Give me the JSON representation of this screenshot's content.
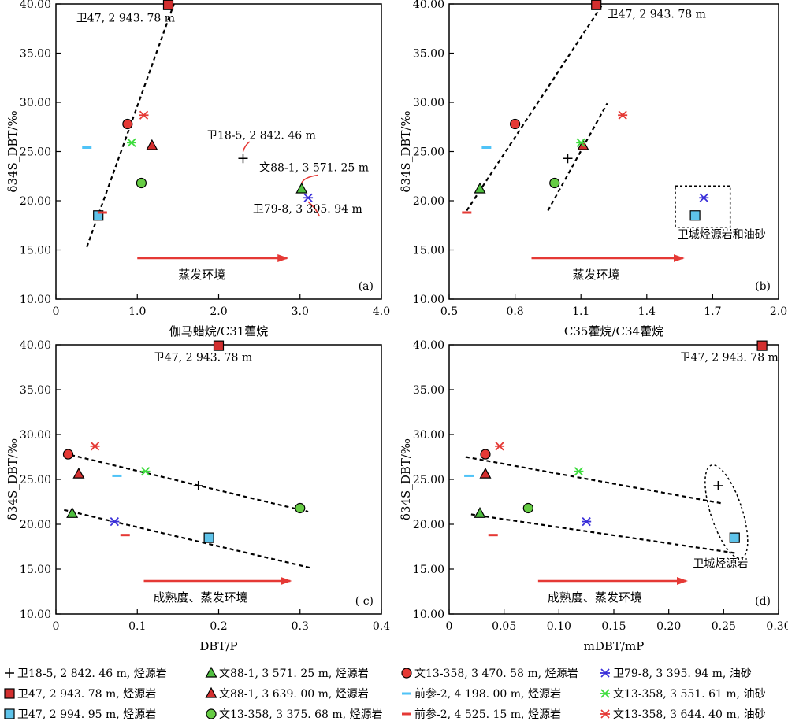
{
  "chart_data": [
    {
      "type": "scatter",
      "panel": "(a)",
      "xlabel": "伽马蜡烷/C31藿烷",
      "ylabel": "δ34S_DBT/‰",
      "xlim": [
        0,
        4.0
      ],
      "ylim": [
        10,
        40
      ],
      "xticks": [
        "0",
        "1.0",
        "2.0",
        "3.0",
        "4.0"
      ],
      "yticks": [
        "10.00",
        "15.00",
        "20.00",
        "25.00",
        "30.00",
        "35.00",
        "40.00"
      ],
      "arrow_label": "蒸发环境",
      "points": [
        {
          "sample": "wei18_5",
          "x": 2.3,
          "y": 24.3
        },
        {
          "sample": "wei47_2943",
          "x": 1.38,
          "y": 39.9
        },
        {
          "sample": "wei47_2994",
          "x": 0.52,
          "y": 18.5
        },
        {
          "sample": "wen88_3571",
          "x": 3.02,
          "y": 21.2
        },
        {
          "sample": "wen88_3639",
          "x": 1.18,
          "y": 25.6
        },
        {
          "sample": "wen13_3375",
          "x": 1.05,
          "y": 21.8
        },
        {
          "sample": "wen13_3470",
          "x": 0.88,
          "y": 27.8
        },
        {
          "sample": "qian2_4198",
          "x": 0.38,
          "y": 25.4
        },
        {
          "sample": "qian2_4525",
          "x": 0.57,
          "y": 18.8
        },
        {
          "sample": "wei79_8",
          "x": 3.1,
          "y": 20.3
        },
        {
          "sample": "wen13_3551",
          "x": 0.93,
          "y": 25.9
        },
        {
          "sample": "wen13_3644",
          "x": 1.08,
          "y": 28.7
        }
      ],
      "trendlines": [
        {
          "x1": 0.38,
          "y1": 15.3,
          "x2": 1.45,
          "y2": 40.0
        }
      ],
      "annotations": [
        {
          "text": "卫47, 2 943. 78 m",
          "x": 0.25,
          "y": 38.2
        },
        {
          "text": "卫18-5, 2 842. 46 m",
          "x": 1.85,
          "y": 26.3
        },
        {
          "text": "文88-1, 3 571. 25 m",
          "x": 2.5,
          "y": 23.0
        },
        {
          "text": "卫79-8, 3 395. 94 m",
          "x": 2.42,
          "y": 18.8
        }
      ]
    },
    {
      "type": "scatter",
      "panel": "(b)",
      "xlabel": "C35藿烷/C34藿烷",
      "ylabel": "δ34S_DBT/‰",
      "xlim": [
        0.5,
        2.0
      ],
      "ylim": [
        10,
        40
      ],
      "xticks": [
        "0.5",
        "0.8",
        "1.1",
        "1.4",
        "1.7",
        "2.0"
      ],
      "yticks": [
        "10.00",
        "15.00",
        "20.00",
        "25.00",
        "30.00",
        "35.00",
        "40.00"
      ],
      "arrow_label": "蒸发环境",
      "box_label": "卫城烃源岩和油砂",
      "points": [
        {
          "sample": "wei18_5",
          "x": 1.04,
          "y": 24.3
        },
        {
          "sample": "wei47_2943",
          "x": 1.17,
          "y": 39.9
        },
        {
          "sample": "wei47_2994",
          "x": 1.62,
          "y": 18.5
        },
        {
          "sample": "wen88_3571",
          "x": 0.64,
          "y": 21.2
        },
        {
          "sample": "wen88_3639",
          "x": 1.11,
          "y": 25.6
        },
        {
          "sample": "wen13_3375",
          "x": 0.98,
          "y": 21.8
        },
        {
          "sample": "wen13_3470",
          "x": 0.8,
          "y": 27.8
        },
        {
          "sample": "qian2_4198",
          "x": 0.67,
          "y": 25.4
        },
        {
          "sample": "qian2_4525",
          "x": 0.58,
          "y": 18.8
        },
        {
          "sample": "wei79_8",
          "x": 1.66,
          "y": 20.3
        },
        {
          "sample": "wen13_3551",
          "x": 1.1,
          "y": 25.9
        },
        {
          "sample": "wen13_3644",
          "x": 1.29,
          "y": 28.7
        }
      ],
      "trendlines": [
        {
          "x1": 0.58,
          "y1": 19.0,
          "x2": 1.2,
          "y2": 40.0
        },
        {
          "x1": 0.95,
          "y1": 19.0,
          "x2": 1.22,
          "y2": 29.9
        }
      ],
      "annotations": [
        {
          "text": "卫47, 2 943. 78 m",
          "x": 1.22,
          "y": 38.6
        }
      ]
    },
    {
      "type": "scatter",
      "panel": "( c)",
      "xlabel": "DBT/P",
      "ylabel": "δ34S_DBT/‰",
      "xlim": [
        0,
        0.4
      ],
      "ylim": [
        10,
        40
      ],
      "xticks": [
        "0",
        "0.1",
        "0.2",
        "0.3",
        "0.4"
      ],
      "yticks": [
        "10.00",
        "15.00",
        "20.00",
        "25.00",
        "30.00",
        "35.00",
        "40.00"
      ],
      "arrow_label": "成熟度、蒸发环境",
      "points": [
        {
          "sample": "wei18_5",
          "x": 0.175,
          "y": 24.3
        },
        {
          "sample": "wei47_2943",
          "x": 0.2,
          "y": 39.9
        },
        {
          "sample": "wei47_2994",
          "x": 0.188,
          "y": 18.5
        },
        {
          "sample": "wen88_3571",
          "x": 0.02,
          "y": 21.2
        },
        {
          "sample": "wen88_3639",
          "x": 0.028,
          "y": 25.6
        },
        {
          "sample": "wen13_3375",
          "x": 0.3,
          "y": 21.8
        },
        {
          "sample": "wen13_3470",
          "x": 0.015,
          "y": 27.8
        },
        {
          "sample": "qian2_4198",
          "x": 0.075,
          "y": 25.4
        },
        {
          "sample": "qian2_4525",
          "x": 0.085,
          "y": 18.8
        },
        {
          "sample": "wei79_8",
          "x": 0.072,
          "y": 20.3
        },
        {
          "sample": "wen13_3551",
          "x": 0.11,
          "y": 25.9
        },
        {
          "sample": "wen13_3644",
          "x": 0.048,
          "y": 28.7
        }
      ],
      "trendlines": [
        {
          "x1": 0.01,
          "y1": 27.9,
          "x2": 0.31,
          "y2": 21.4
        },
        {
          "x1": 0.01,
          "y1": 21.6,
          "x2": 0.315,
          "y2": 15.1
        }
      ],
      "annotations": [
        {
          "text": "卫47, 2 943. 78 m",
          "x": 0.12,
          "y": 38.2
        }
      ]
    },
    {
      "type": "scatter",
      "panel": "(d)",
      "xlabel": "mDBT/mP",
      "ylabel": "δ34S_DBT/‰",
      "xlim": [
        0,
        0.3
      ],
      "ylim": [
        10,
        40
      ],
      "xticks": [
        "0",
        "0.05",
        "0.10",
        "0.15",
        "0.20",
        "0.25",
        "0.30"
      ],
      "yticks": [
        "10.00",
        "15.00",
        "20.00",
        "25.00",
        "30.00",
        "35.00",
        "40.00"
      ],
      "arrow_label": "成熟度、蒸发环境",
      "ellipse_label": "卫城烃源岩",
      "points": [
        {
          "sample": "wei18_5",
          "x": 0.245,
          "y": 24.3
        },
        {
          "sample": "wei47_2943",
          "x": 0.285,
          "y": 39.9
        },
        {
          "sample": "wei47_2994",
          "x": 0.26,
          "y": 18.5
        },
        {
          "sample": "wen88_3571",
          "x": 0.028,
          "y": 21.2
        },
        {
          "sample": "wen88_3639",
          "x": 0.033,
          "y": 25.6
        },
        {
          "sample": "wen13_3375",
          "x": 0.072,
          "y": 21.8
        },
        {
          "sample": "wen13_3470",
          "x": 0.033,
          "y": 27.8
        },
        {
          "sample": "qian2_4198",
          "x": 0.018,
          "y": 25.4
        },
        {
          "sample": "qian2_4525",
          "x": 0.04,
          "y": 18.8
        },
        {
          "sample": "wei79_8",
          "x": 0.125,
          "y": 20.3
        },
        {
          "sample": "wen13_3551",
          "x": 0.118,
          "y": 25.9
        },
        {
          "sample": "wen13_3644",
          "x": 0.046,
          "y": 28.7
        }
      ],
      "trendlines": [
        {
          "x1": 0.015,
          "y1": 27.5,
          "x2": 0.25,
          "y2": 22.3
        },
        {
          "x1": 0.02,
          "y1": 21.1,
          "x2": 0.26,
          "y2": 16.8
        }
      ],
      "annotations": [
        {
          "text": "卫47, 2 943. 78 m",
          "x": 0.21,
          "y": 38.2
        }
      ]
    }
  ],
  "legend": [
    {
      "id": "wei18_5",
      "marker": "plus",
      "color": "#000000",
      "label": "卫18-5, 2 842. 46 m, 烃源岩"
    },
    {
      "id": "wen88_3571",
      "marker": "triangle",
      "color": "#4fbf3f",
      "label": "文88-1, 3 571. 25 m, 烃源岩"
    },
    {
      "id": "wen13_3470",
      "marker": "circle",
      "color": "#e53935",
      "label": "文13-358, 3 470. 58 m, 烃源岩"
    },
    {
      "id": "wei79_8",
      "marker": "asterisk",
      "color": "#3a2fd9",
      "label": "卫79-8, 3 395. 94 m, 油砂"
    },
    {
      "id": "wei47_2943",
      "marker": "square",
      "color": "#d32f2f",
      "label": "卫47, 2 943. 78 m, 烃源岩"
    },
    {
      "id": "wen88_3639",
      "marker": "triangle",
      "color": "#d32f2f",
      "label": "文88-1, 3 639. 00 m, 烃源岩"
    },
    {
      "id": "qian2_4198",
      "marker": "dash",
      "color": "#4fc3f7",
      "label": "前参-2, 4 198. 00 m, 烃源岩"
    },
    {
      "id": "wen13_3551",
      "marker": "asterisk",
      "color": "#3ddc3d",
      "label": "文13-358, 3 551. 61 m, 油砂"
    },
    {
      "id": "wei47_2994",
      "marker": "square",
      "color": "#5ec3ea",
      "label": "卫47, 2 994. 95 m, 烃源岩"
    },
    {
      "id": "wen13_3375",
      "marker": "circle",
      "color": "#66cc44",
      "label": "文13-358, 3 375. 68 m, 烃源岩"
    },
    {
      "id": "qian2_4525",
      "marker": "dash",
      "color": "#e53935",
      "label": "前参-2, 4 525. 15 m, 烃源岩"
    },
    {
      "id": "wen13_3644",
      "marker": "asterisk",
      "color": "#e53935",
      "label": "文13-358, 3 644. 40 m, 油砂"
    }
  ],
  "colors": {
    "arrow": "#e53935",
    "axis": "#000000"
  }
}
